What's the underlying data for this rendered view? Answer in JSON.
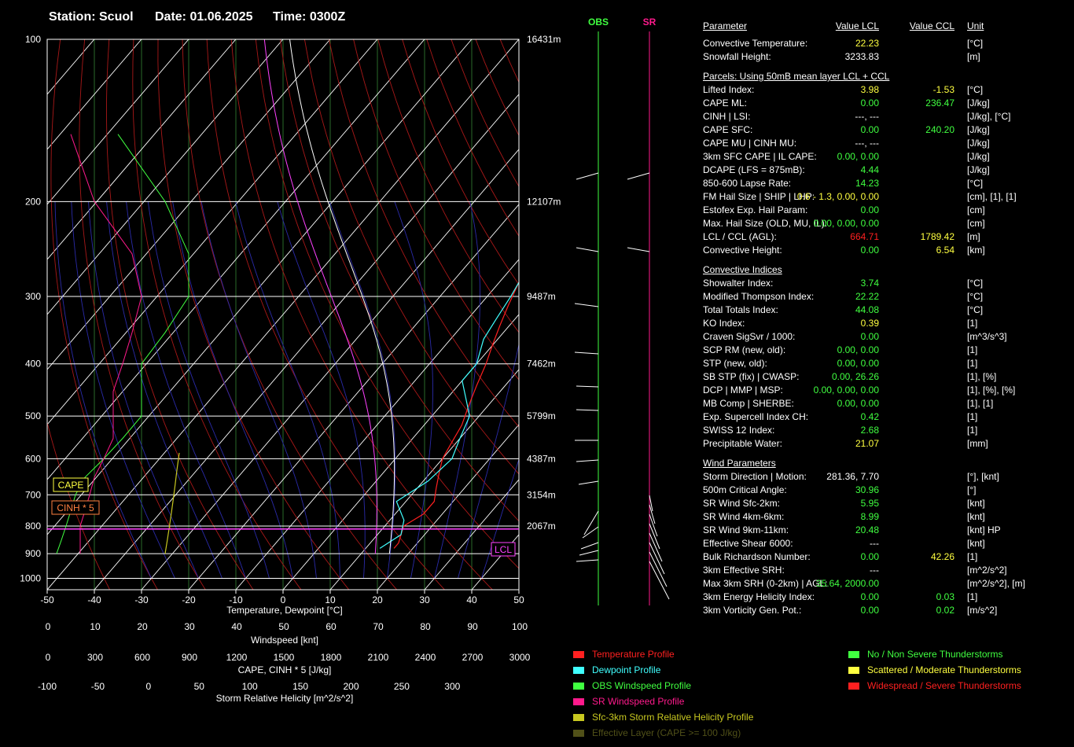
{
  "header": {
    "station_label": "Station:",
    "station": "Scuol",
    "date_label": "Date:",
    "date": "01.06.2025",
    "time_label": "Time:",
    "time": "0300Z"
  },
  "wind_columns": {
    "obs": "OBS",
    "sr": "SR"
  },
  "chart_data": {
    "type": "line",
    "title": "",
    "xlabel": "Temperature, Dewpoint [°C]",
    "ylabel": "",
    "xlim": [
      -50,
      50
    ],
    "ylim": [
      1050,
      100
    ],
    "yscale": "log",
    "x_ticks": [
      -50,
      -40,
      -30,
      -20,
      -10,
      0,
      10,
      20,
      30,
      40,
      50
    ],
    "y_ticks": [
      100,
      200,
      300,
      400,
      500,
      600,
      700,
      800,
      900,
      1000
    ],
    "height_ticks": [
      {
        "p": 100,
        "label": "16431m"
      },
      {
        "p": 200,
        "label": "12107m"
      },
      {
        "p": 300,
        "label": "9487m"
      },
      {
        "p": 400,
        "label": "7462m"
      },
      {
        "p": 500,
        "label": "5799m"
      },
      {
        "p": 600,
        "label": "4387m"
      },
      {
        "p": 700,
        "label": "3154m"
      },
      {
        "p": 800,
        "label": "2067m"
      }
    ],
    "secondary_axes": [
      {
        "label": "Windspeed [knt]",
        "ticks": [
          "0",
          "10",
          "20",
          "30",
          "40",
          "50",
          "60",
          "70",
          "80",
          "90",
          "100"
        ]
      },
      {
        "label": "CAPE, CINH * 5 [J/kg]",
        "ticks": [
          "0",
          "300",
          "600",
          "900",
          "1200",
          "1500",
          "1800",
          "2100",
          "2400",
          "2700",
          "3000"
        ]
      },
      {
        "label": "Storm Relative Helicity [m^2/s^2]",
        "ticks": [
          "-100",
          "-50",
          "0",
          "50",
          "100",
          "150",
          "200",
          "250",
          "300"
        ]
      }
    ],
    "series": [
      {
        "name": "Temperature Profile",
        "color": "#ff2020",
        "points": [
          [
            16,
            880
          ],
          [
            16,
            860
          ],
          [
            14,
            800
          ],
          [
            16,
            760
          ],
          [
            16,
            720
          ],
          [
            14,
            680
          ],
          [
            12,
            640
          ],
          [
            10,
            600
          ],
          [
            9,
            560
          ],
          [
            8,
            520
          ],
          [
            6,
            480
          ],
          [
            4,
            440
          ],
          [
            2,
            400
          ],
          [
            0,
            370
          ],
          [
            -2,
            340
          ],
          [
            -4,
            310
          ],
          [
            -6,
            280
          ],
          [
            -8,
            250
          ],
          [
            -8,
            220
          ],
          [
            -9,
            200
          ],
          [
            -5,
            180
          ],
          [
            2,
            160
          ],
          [
            10,
            145
          ],
          [
            20,
            130
          ],
          [
            30,
            120
          ]
        ]
      },
      {
        "name": "Dewpoint Profile",
        "color": "#40ffff",
        "points": [
          [
            13,
            880
          ],
          [
            15,
            830
          ],
          [
            13,
            780
          ],
          [
            8,
            720
          ],
          [
            11,
            660
          ],
          [
            12,
            600
          ],
          [
            10,
            550
          ],
          [
            8,
            500
          ],
          [
            0,
            430
          ],
          [
            0,
            400
          ],
          [
            -3,
            360
          ],
          [
            -4,
            330
          ],
          [
            -5,
            300
          ],
          [
            -7,
            260
          ],
          [
            -9,
            240
          ],
          [
            -10,
            200
          ],
          [
            -10,
            180
          ],
          [
            -8,
            150
          ],
          [
            0,
            120
          ],
          [
            10,
            100
          ]
        ]
      },
      {
        "name": "OBS Windspeed Profile",
        "color": "#40ff40",
        "values_knt": [
          2,
          3,
          4,
          5,
          6,
          8,
          12,
          16,
          20,
          20,
          20,
          25,
          30,
          30,
          25,
          15
        ]
      },
      {
        "name": "SR Windspeed Profile",
        "color": "#ff1a8c",
        "values_knt": [
          7,
          7,
          7,
          8,
          9,
          10,
          12,
          14,
          14,
          14,
          16,
          18,
          20,
          18,
          10,
          5
        ]
      },
      {
        "name": "Sfc-3km Storm Relative Helicity Profile",
        "color": "#c8c820",
        "values_m2s2": [
          0,
          5,
          10,
          15,
          20,
          25,
          30,
          36
        ]
      }
    ],
    "annotations": [
      {
        "text": "CAPE",
        "color": "#ffff40"
      },
      {
        "text": "CINH * 5",
        "color": "#ff8040"
      },
      {
        "text": "LCL",
        "color": "#ff40ff"
      }
    ],
    "legend": {
      "placement": "bottom",
      "profile_entries": [
        {
          "name": "Temperature Profile",
          "color": "#ff2020"
        },
        {
          "name": "Dewpoint Profile",
          "color": "#40ffff"
        },
        {
          "name": "OBS Windspeed Profile",
          "color": "#40ff40"
        },
        {
          "name": "SR Windspeed Profile",
          "color": "#ff1a8c"
        },
        {
          "name": "Sfc-3km Storm Relative Helicity Profile",
          "color": "#c8c820"
        },
        {
          "name": "Effective Layer (CAPE >= 100 J/kg)",
          "color": "#505018"
        }
      ],
      "category_entries": [
        {
          "name": "No / Non Severe Thunderstorms",
          "color": "#40ff40"
        },
        {
          "name": "Scattered / Moderate Thunderstorms",
          "color": "#ffff40"
        },
        {
          "name": "Widespread / Severe Thunderstorms",
          "color": "#ff2020"
        }
      ]
    }
  },
  "params": [
    {
      "type": "head",
      "name": "Parameter",
      "lcl": "Value LCL",
      "ccl": "Value CCL",
      "unit": "Unit"
    },
    {
      "name": "Convective Temperature:",
      "lcl": "22.23",
      "lc": "y",
      "unit": "[°C]"
    },
    {
      "name": "Snowfall Height:",
      "lcl": "3233.83",
      "lc": "w",
      "unit": "[m]"
    },
    {
      "type": "sect",
      "name": "Parcels: Using 50mB mean layer LCL + CCL"
    },
    {
      "name": "Lifted Index:",
      "lcl": "3.98",
      "lc": "y",
      "ccl": "-1.53",
      "cc": "y",
      "unit": "[°C]"
    },
    {
      "name": "CAPE ML:",
      "lcl": "0.00",
      "lc": "g",
      "ccl": "236.47",
      "cc": "g",
      "unit": "[J/kg]"
    },
    {
      "name": "CINH | LSI:",
      "lcl": "---,   ---",
      "lc": "w",
      "unit": "[J/kg], [°C]"
    },
    {
      "name": "CAPE SFC:",
      "lcl": "0.00",
      "lc": "g",
      "ccl": "240.20",
      "cc": "g",
      "unit": "[J/kg]"
    },
    {
      "name": "CAPE MU | CINH MU:",
      "lcl": "---,   ---",
      "lc": "w",
      "unit": "[J/kg]"
    },
    {
      "name": "3km SFC CAPE | IL CAPE:",
      "lcl": "0.00,   0.00",
      "lc": "g",
      "unit": "[J/kg]"
    },
    {
      "name": "DCAPE (LFS = 875mB):",
      "lcl": "4.44",
      "lc": "g",
      "unit": "[J/kg]"
    },
    {
      "name": "850-600 Lapse Rate:",
      "lcl": "14.23",
      "lc": "g",
      "unit": "[°C]"
    },
    {
      "name": "FM Hail Size | SHIP | LHP:",
      "lcl": "0.6 - 1.3,   0.00,   0.00",
      "lc": "y",
      "unit": "[cm], [1], [1]"
    },
    {
      "name": "Estofex Exp. Hail Param:",
      "lcl": "0.00",
      "lc": "g",
      "unit": "[cm]"
    },
    {
      "name": "Max. Hail Size (OLD, MU, IL):",
      "lcl": "0.00,   0.00,   0.00",
      "lc": "g",
      "unit": "[cm]"
    },
    {
      "name": "LCL / CCL (AGL):",
      "lcl": "664.71",
      "lc": "r",
      "ccl": "1789.42",
      "cc": "y",
      "unit": "[m]"
    },
    {
      "name": "Convective Height:",
      "lcl": "0.00",
      "lc": "g",
      "ccl": "6.54",
      "cc": "y",
      "unit": "[km]"
    },
    {
      "type": "sect",
      "name": "Convective Indices"
    },
    {
      "name": "Showalter Index:",
      "lcl": "3.74",
      "lc": "g",
      "unit": "[°C]"
    },
    {
      "name": "Modified Thompson Index:",
      "lcl": "22.22",
      "lc": "g",
      "unit": "[°C]"
    },
    {
      "name": "Total Totals Index:",
      "lcl": "44.08",
      "lc": "g",
      "unit": "[°C]"
    },
    {
      "name": "KO Index:",
      "lcl": "0.39",
      "lc": "y",
      "unit": "[1]"
    },
    {
      "name": "Craven SigSvr / 1000:",
      "lcl": "0.00",
      "lc": "g",
      "unit": "[m^3/s^3]"
    },
    {
      "name": "SCP RM (new, old):",
      "lcl": "0.00,   0.00",
      "lc": "g",
      "unit": "[1]"
    },
    {
      "name": "STP (new, old):",
      "lcl": "0.00,   0.00",
      "lc": "g",
      "unit": "[1]"
    },
    {
      "name": "SB STP (fix) | CWASP:",
      "lcl": "0.00,   26.26",
      "lc": "g",
      "unit": "[1], [%]"
    },
    {
      "name": "DCP | MMP | MSP:",
      "lcl": "0.00,   0.00,   0.00",
      "lc": "g",
      "unit": "[1], [%], [%]"
    },
    {
      "name": "MB Comp | SHERBE:",
      "lcl": "0.00,   0.00",
      "lc": "g",
      "unit": "[1], [1]"
    },
    {
      "name": "Exp. Supercell Index CH:",
      "lcl": "0.42",
      "lc": "g",
      "unit": "[1]"
    },
    {
      "name": "SWISS 12 Index:",
      "lcl": "2.68",
      "lc": "g",
      "unit": "[1]"
    },
    {
      "name": "Precipitable Water:",
      "lcl": "21.07",
      "lc": "y",
      "unit": "[mm]"
    },
    {
      "type": "sect",
      "name": "Wind Parameters"
    },
    {
      "name": "Storm Direction | Motion:",
      "lcl": "281.36,   7.70",
      "lc": "w",
      "unit": "[°], [knt]"
    },
    {
      "name": "500m Critical Angle:",
      "lcl": "30.96",
      "lc": "g",
      "unit": "[°]"
    },
    {
      "name": "SR Wind Sfc-2km:",
      "lcl": "5.95",
      "lc": "g",
      "unit": "[knt]"
    },
    {
      "name": "SR Wind 4km-6km:",
      "lcl": "8.99",
      "lc": "g",
      "unit": "[knt]"
    },
    {
      "name": "SR Wind 9km-11km:",
      "lcl": "20.48",
      "lc": "g",
      "unit": "[knt] HP"
    },
    {
      "name": "Effective Shear 6000:",
      "lcl": "---",
      "lc": "w",
      "unit": "[knt]"
    },
    {
      "name": "Bulk Richardson Number:",
      "lcl": "0.00",
      "lc": "g",
      "ccl": "42.26",
      "cc": "y",
      "unit": "[1]"
    },
    {
      "name": "3km Effective SRH:",
      "lcl": "---",
      "lc": "w",
      "unit": "[m^2/s^2]"
    },
    {
      "name": "Max 3km SRH (0-2km) | AGL:",
      "lcl": "35.64,   2000.00",
      "lc": "g",
      "unit": "[m^2/s^2], [m]"
    },
    {
      "name": "3km Energy Helicity Index:",
      "lcl": "0.00",
      "lc": "g",
      "ccl": "0.03",
      "cc": "g",
      "unit": "[1]"
    },
    {
      "name": "3km Vorticity Gen. Pot.:",
      "lcl": "0.00",
      "lc": "g",
      "ccl": "0.02",
      "cc": "g",
      "unit": "[m/s^2]"
    }
  ]
}
